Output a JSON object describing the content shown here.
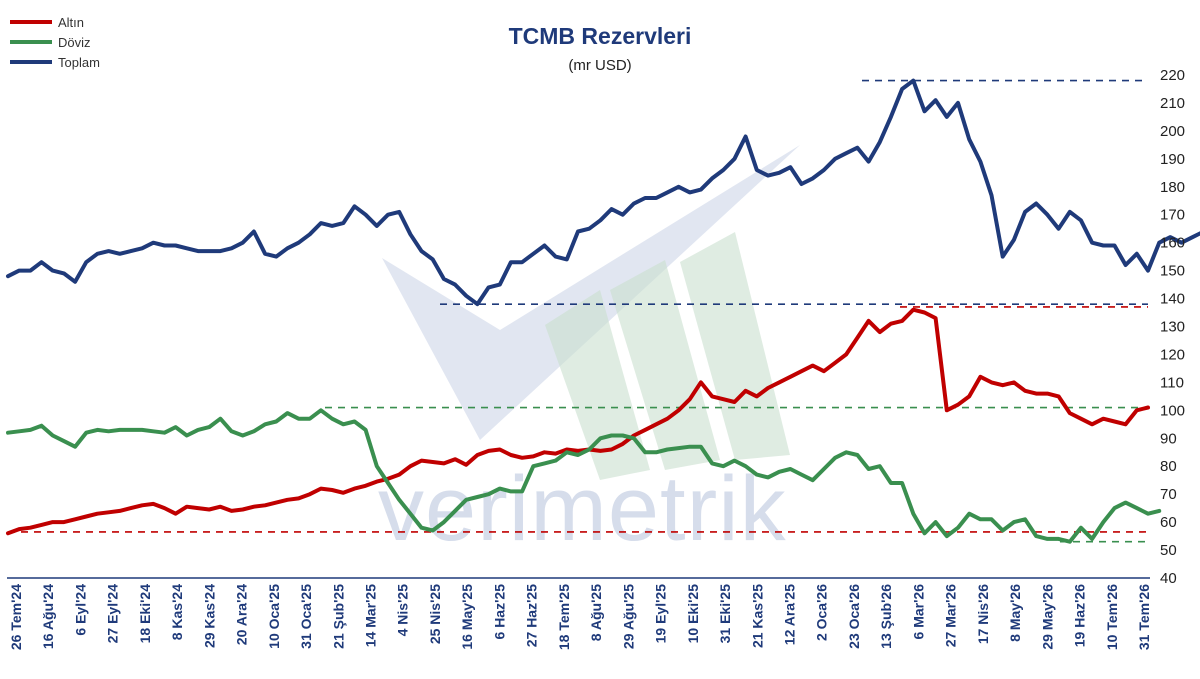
{
  "chart_data": {
    "type": "line",
    "title": "TCMB Rezervleri",
    "subtitle": "(mr USD)",
    "watermark": "verimetrik",
    "legend_position": "top-left",
    "ylim": [
      40,
      220
    ],
    "yticks": [
      40,
      50,
      60,
      70,
      80,
      90,
      100,
      110,
      120,
      130,
      140,
      150,
      160,
      170,
      180,
      190,
      200,
      210,
      220
    ],
    "x_tick_labels": [
      "26 Tem'24",
      "16 Ağu'24",
      "6 Eyl'24",
      "27 Eyl'24",
      "18 Eki'24",
      "8 Kas'24",
      "29 Kas'24",
      "20 Ara'24",
      "10 Oca'25",
      "31 Oca'25",
      "21 Şub'25",
      "14 Mar'25",
      "4 Nis'25",
      "25 Nis'25",
      "16 May'25",
      "6 Haz'25",
      "27 Haz'25",
      "18 Tem'25",
      "8 Ağu'25",
      "29 Ağu'25",
      "19 Eyl'25",
      "10 Eki'25",
      "31 Eki'25",
      "21 Kas'25",
      "12 Ara'25",
      "2 Oca'26",
      "23 Oca'26",
      "13 Şub'26",
      "6 Mar'26",
      "27 Mar'26",
      "17 Nis'26",
      "8 May'26",
      "29 May'26",
      "19 Haz'26",
      "10 Tem'26",
      "31 Tem'26"
    ],
    "series": [
      {
        "name": "Altın",
        "color": "#c00000",
        "values": [
          56,
          57.5,
          58,
          59,
          60,
          60,
          61,
          62,
          63,
          63.5,
          64,
          65,
          66,
          66.5,
          65,
          63,
          65.5,
          65,
          64.5,
          65.5,
          64,
          64.5,
          65.5,
          66,
          67,
          68,
          68.5,
          70,
          72,
          71.5,
          70.5,
          72,
          73,
          74.5,
          75.5,
          77,
          80,
          82,
          81.5,
          81,
          82.5,
          80.5,
          84,
          85.5,
          86,
          84,
          83,
          83.5,
          85,
          84.5,
          86,
          85.5,
          86,
          85.5,
          86,
          88,
          91,
          93,
          95,
          97,
          100,
          104,
          110,
          105,
          104,
          103,
          107,
          105,
          108,
          110,
          112,
          114,
          116,
          114,
          117,
          120,
          126,
          132,
          128,
          131,
          132,
          136,
          135,
          133,
          100,
          102,
          105,
          112,
          110,
          109,
          110,
          107,
          106,
          106,
          105,
          99,
          97,
          95,
          97,
          96,
          95,
          100,
          101
        ]
      },
      {
        "name": "Döviz",
        "color": "#3a8f4f",
        "values": [
          92,
          92.5,
          93,
          94.5,
          91,
          89,
          87,
          92,
          93,
          92.5,
          93,
          93,
          93,
          92.5,
          92,
          94,
          91,
          93,
          94,
          97,
          92.5,
          91,
          92.5,
          95,
          96,
          99,
          97,
          97,
          100,
          97,
          95,
          96,
          93,
          80,
          74,
          68,
          63,
          58,
          57,
          60,
          64,
          68,
          69,
          70,
          72,
          71,
          71,
          80,
          81,
          82,
          85,
          84,
          86,
          90,
          91,
          91,
          90,
          85,
          85,
          86,
          86.5,
          87,
          87,
          81,
          80,
          82,
          80,
          77,
          76,
          78,
          79,
          77,
          75,
          79,
          83,
          85,
          84,
          79,
          80,
          74,
          74,
          63,
          56,
          60,
          55,
          58,
          63,
          61,
          61,
          57,
          60,
          61,
          55,
          54,
          54,
          53,
          58,
          54,
          60,
          65,
          67,
          65,
          63,
          64
        ]
      },
      {
        "name": "Toplam",
        "color": "#1f3a7a",
        "values": [
          148,
          150,
          150,
          153,
          150,
          149,
          146,
          153,
          156,
          157,
          156,
          157,
          158,
          160,
          159,
          159,
          158,
          157,
          157,
          157,
          158,
          160,
          164,
          156,
          155,
          158,
          160,
          163,
          167,
          166,
          167,
          173,
          170,
          166,
          170,
          171,
          163,
          157,
          154,
          147,
          145,
          141,
          138,
          144,
          145,
          153,
          153,
          156,
          159,
          155,
          154,
          164,
          165,
          168,
          172,
          170,
          174,
          176,
          176,
          178,
          180,
          178,
          179,
          183,
          186,
          190,
          198,
          186,
          184,
          185,
          187,
          181,
          183,
          186,
          190,
          192,
          194,
          189,
          196,
          205,
          215,
          218,
          207,
          211,
          205,
          210,
          197,
          189,
          177,
          155,
          161,
          171,
          174,
          170,
          165,
          171,
          168,
          160,
          159,
          159,
          152,
          156,
          150,
          160,
          162,
          160,
          162,
          164
        ]
      }
    ],
    "reference_lines": [
      {
        "value": 218,
        "color": "#1f3a7a"
      },
      {
        "value": 138,
        "color": "#1f3a7a"
      },
      {
        "value": 137,
        "color": "#c00000"
      },
      {
        "value": 101,
        "color": "#3a8f4f"
      },
      {
        "value": 56.5,
        "color": "#c00000"
      },
      {
        "value": 53,
        "color": "#3a8f4f"
      }
    ]
  }
}
